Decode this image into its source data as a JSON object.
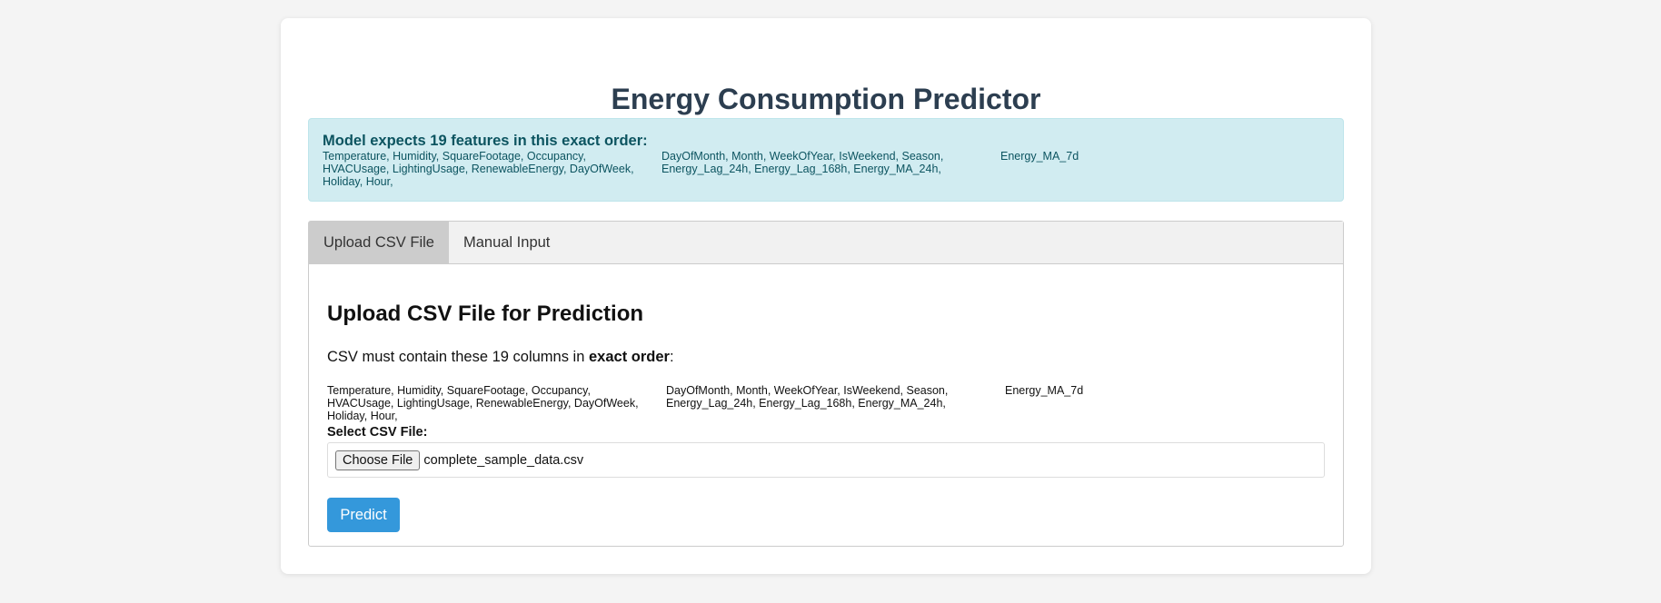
{
  "page": {
    "title": "Energy Consumption Predictor"
  },
  "info": {
    "heading": "Model expects 19 features in this exact order:",
    "feature_columns": [
      "Temperature, Humidity, SquareFootage, Occupancy, HVACUsage, LightingUsage, RenewableEnergy, DayOfWeek, Holiday, Hour,",
      "DayOfMonth, Month, WeekOfYear, IsWeekend, Season, Energy_Lag_24h, Energy_Lag_168h, Energy_MA_24h,",
      "Energy_MA_7d"
    ]
  },
  "tabs": [
    {
      "label": "Upload CSV File",
      "active": true
    },
    {
      "label": "Manual Input",
      "active": false
    }
  ],
  "upload": {
    "heading": "Upload CSV File for Prediction",
    "note_prefix": "CSV must contain these 19 columns in ",
    "note_bold": "exact order",
    "note_suffix": ":",
    "columns": [
      "Temperature, Humidity, SquareFootage, Occupancy, HVACUsage, LightingUsage, RenewableEnergy, DayOfWeek, Holiday, Hour,",
      "DayOfMonth, Month, WeekOfYear, IsWeekend, Season, Energy_Lag_24h, Energy_Lag_168h, Energy_MA_24h,",
      "Energy_MA_7d"
    ],
    "file_label": "Select CSV File:",
    "choose_button": "Choose File",
    "file_name": "complete_sample_data.csv",
    "predict_button": "Predict"
  },
  "colors": {
    "accent": "#3498db",
    "title": "#2c3e50",
    "info_bg": "#d1ecf1",
    "info_text": "#0c5460"
  }
}
